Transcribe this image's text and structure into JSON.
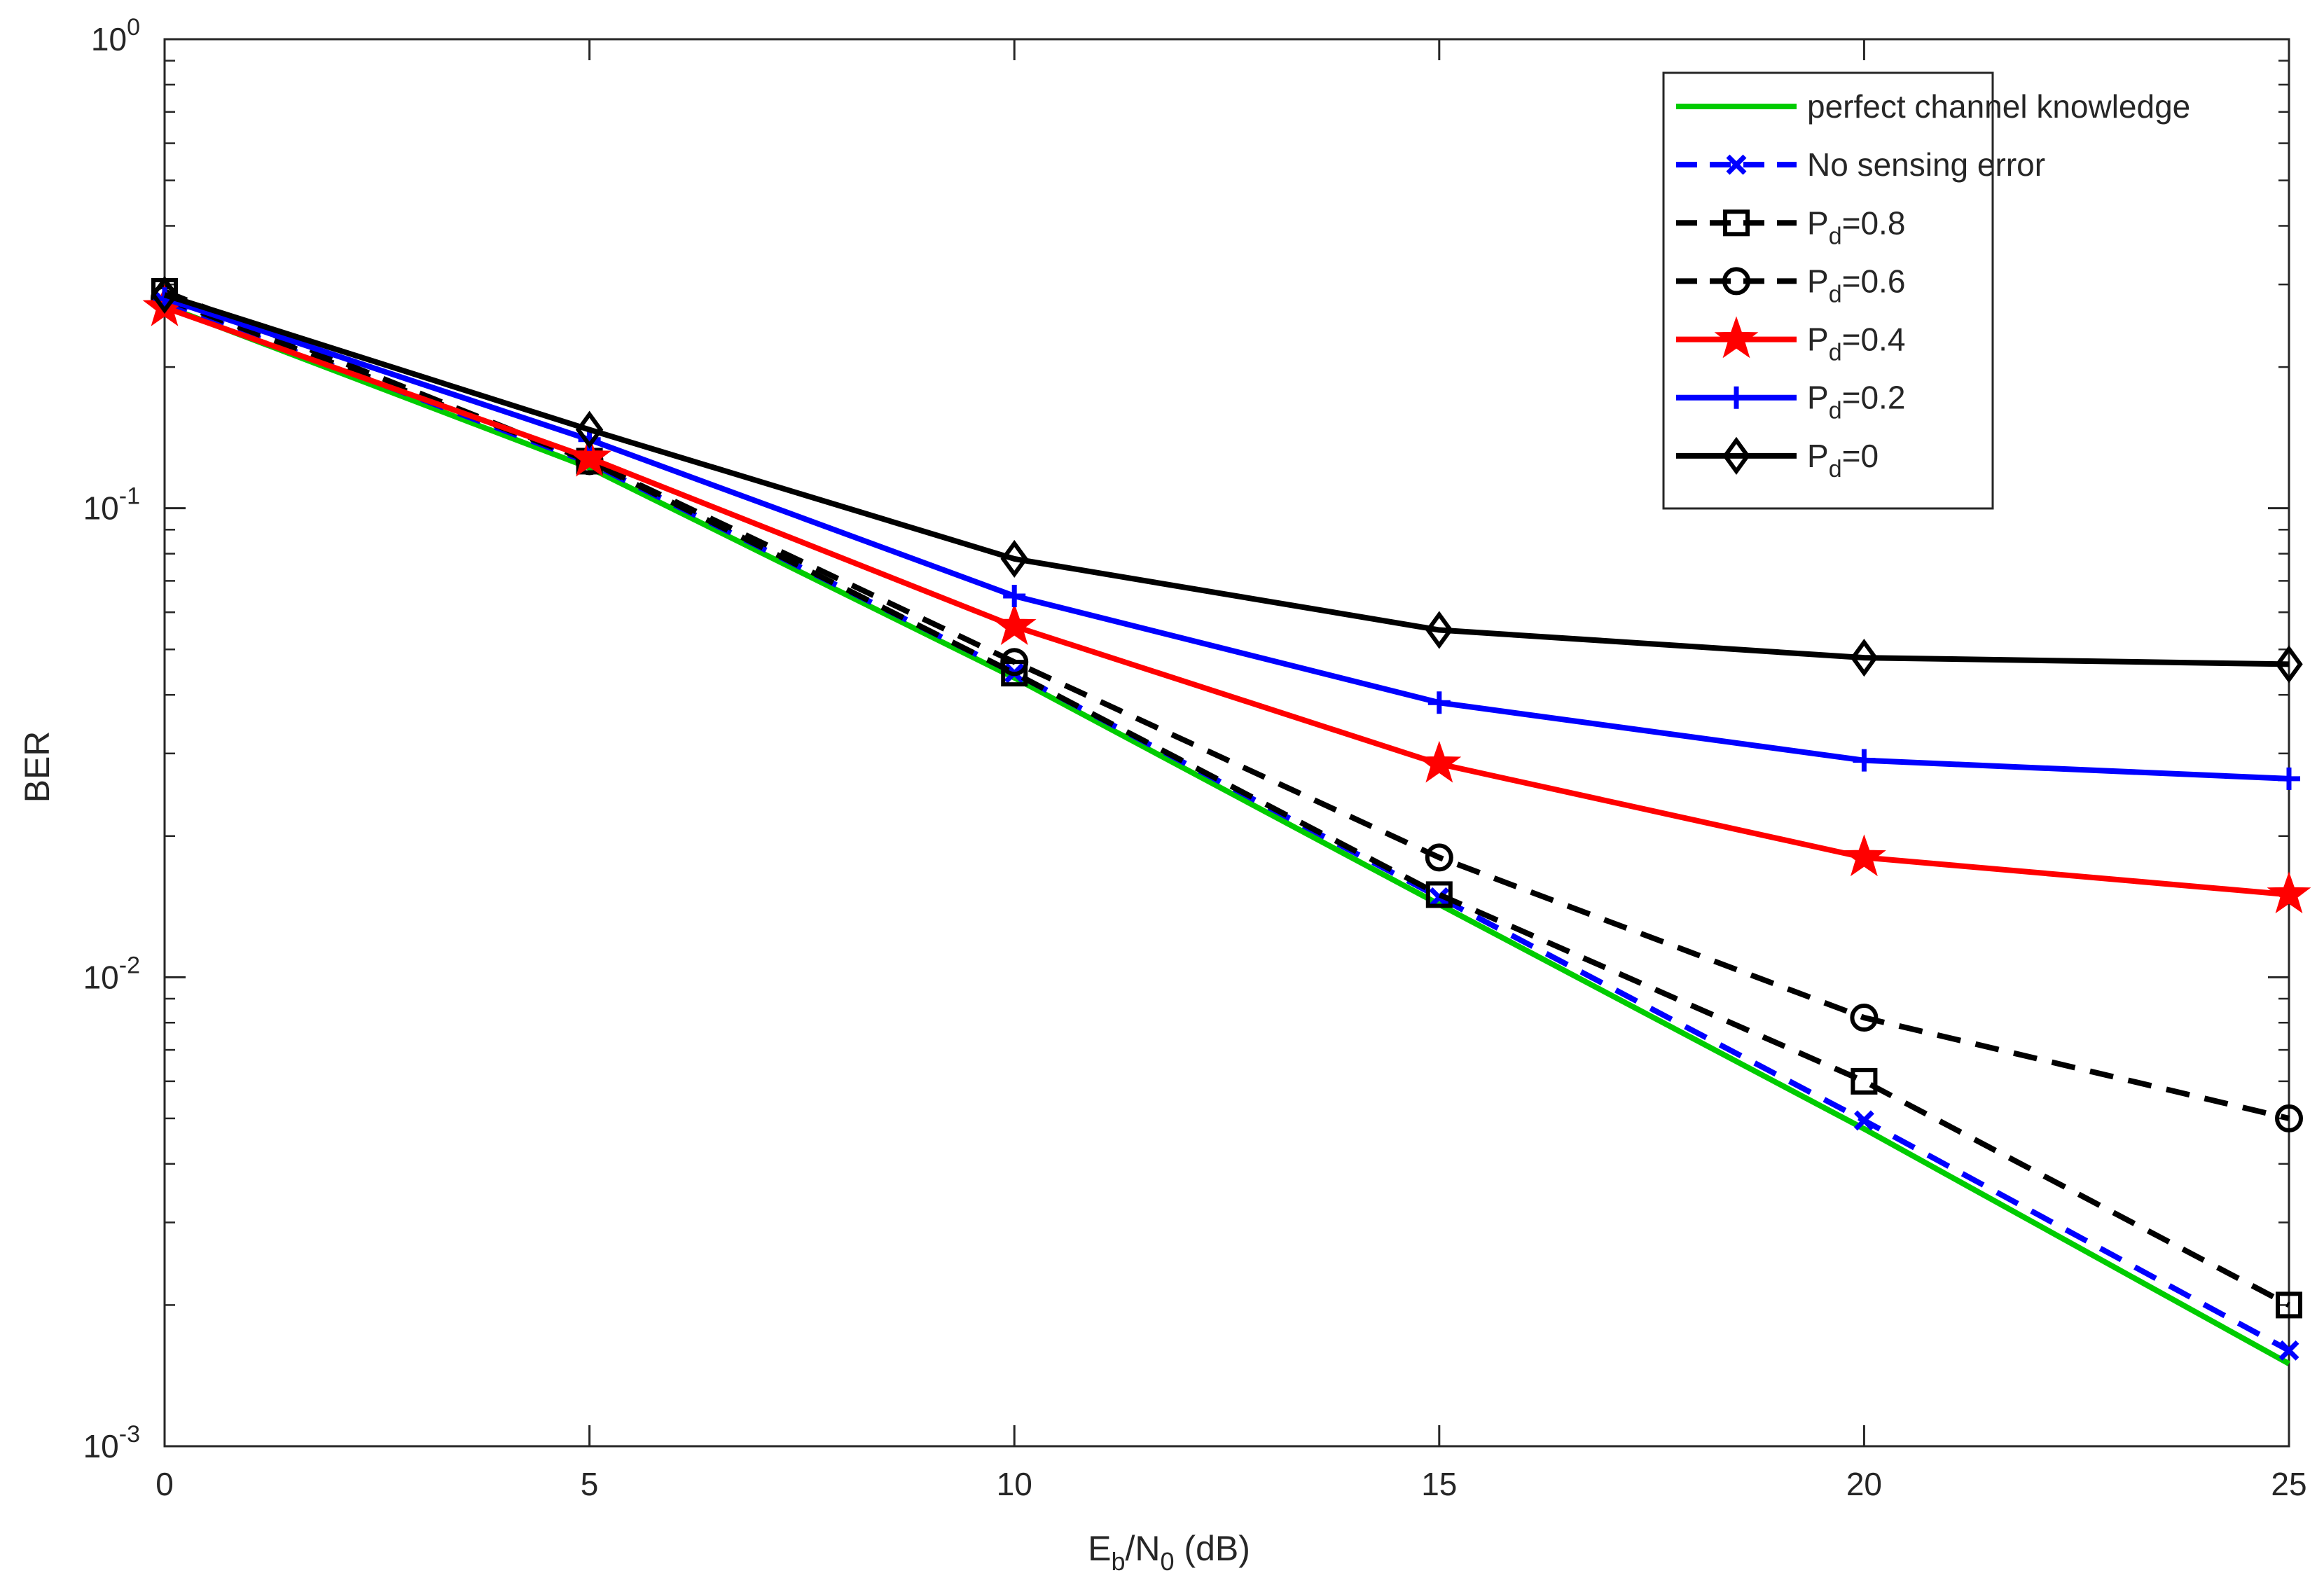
{
  "chart_data": {
    "type": "line",
    "yscale": "log",
    "title": "",
    "xlabel_main": "E",
    "xlabel_sub1": "b",
    "xlabel_mid": "/N",
    "xlabel_sub2": "0",
    "xlabel_tail": " (dB)",
    "ylabel": "BER",
    "xlim": [
      0,
      25
    ],
    "ylim": [
      0.001,
      1
    ],
    "x_ticks": [
      0,
      5,
      10,
      15,
      20,
      25
    ],
    "x_tick_labels": [
      "0",
      "5",
      "10",
      "15",
      "20",
      "25"
    ],
    "y_ticks": [
      {
        "value": 1,
        "base": "10",
        "exp": "0"
      },
      {
        "value": 0.1,
        "base": "10",
        "exp": "-1"
      },
      {
        "value": 0.01,
        "base": "10",
        "exp": "-2"
      },
      {
        "value": 0.001,
        "base": "10",
        "exp": "-3"
      }
    ],
    "grid": false,
    "legend_position": "top-right",
    "x": [
      0,
      5,
      10,
      15,
      20,
      25
    ],
    "series": [
      {
        "name": "perfect channel knowledge",
        "label_base": "perfect channel knowledge",
        "label_sub": "",
        "label_tail": "",
        "color": "#00cc00",
        "dash": "solid",
        "marker": "none",
        "values": [
          0.27,
          0.122,
          0.0435,
          0.0143,
          0.00475,
          0.0015
        ]
      },
      {
        "name": "No sensing error",
        "label_base": "No sensing error",
        "label_sub": "",
        "label_tail": "",
        "color": "#0000ff",
        "dash": "dashed",
        "marker": "x",
        "values": [
          0.275,
          0.125,
          0.0445,
          0.0148,
          0.00495,
          0.0016
        ]
      },
      {
        "name": "Pd=0.8",
        "label_base": "P",
        "label_sub": "d",
        "label_tail": "=0.8",
        "color": "#000000",
        "dash": "dashed",
        "marker": "square",
        "values": [
          0.29,
          0.126,
          0.0445,
          0.015,
          0.006,
          0.002
        ]
      },
      {
        "name": "Pd=0.6",
        "label_base": "P",
        "label_sub": "d",
        "label_tail": "=0.6",
        "color": "#000000",
        "dash": "dashed",
        "marker": "circle",
        "values": [
          0.28,
          0.126,
          0.047,
          0.018,
          0.0082,
          0.005
        ]
      },
      {
        "name": "Pd=0.4",
        "label_base": "P",
        "label_sub": "d",
        "label_tail": "=0.4",
        "color": "#ff0000",
        "dash": "solid",
        "marker": "star",
        "values": [
          0.268,
          0.128,
          0.056,
          0.0285,
          0.018,
          0.015
        ]
      },
      {
        "name": "Pd=0.2",
        "label_base": "P",
        "label_sub": "d",
        "label_tail": "=0.2",
        "color": "#0000ff",
        "dash": "solid",
        "marker": "plus",
        "values": [
          0.28,
          0.14,
          0.065,
          0.0385,
          0.029,
          0.0265
        ]
      },
      {
        "name": "Pd=0",
        "label_base": "P",
        "label_sub": "d",
        "label_tail": "=0",
        "color": "#000000",
        "dash": "solid",
        "marker": "diamond",
        "values": [
          0.285,
          0.147,
          0.078,
          0.055,
          0.048,
          0.0465
        ]
      }
    ]
  }
}
